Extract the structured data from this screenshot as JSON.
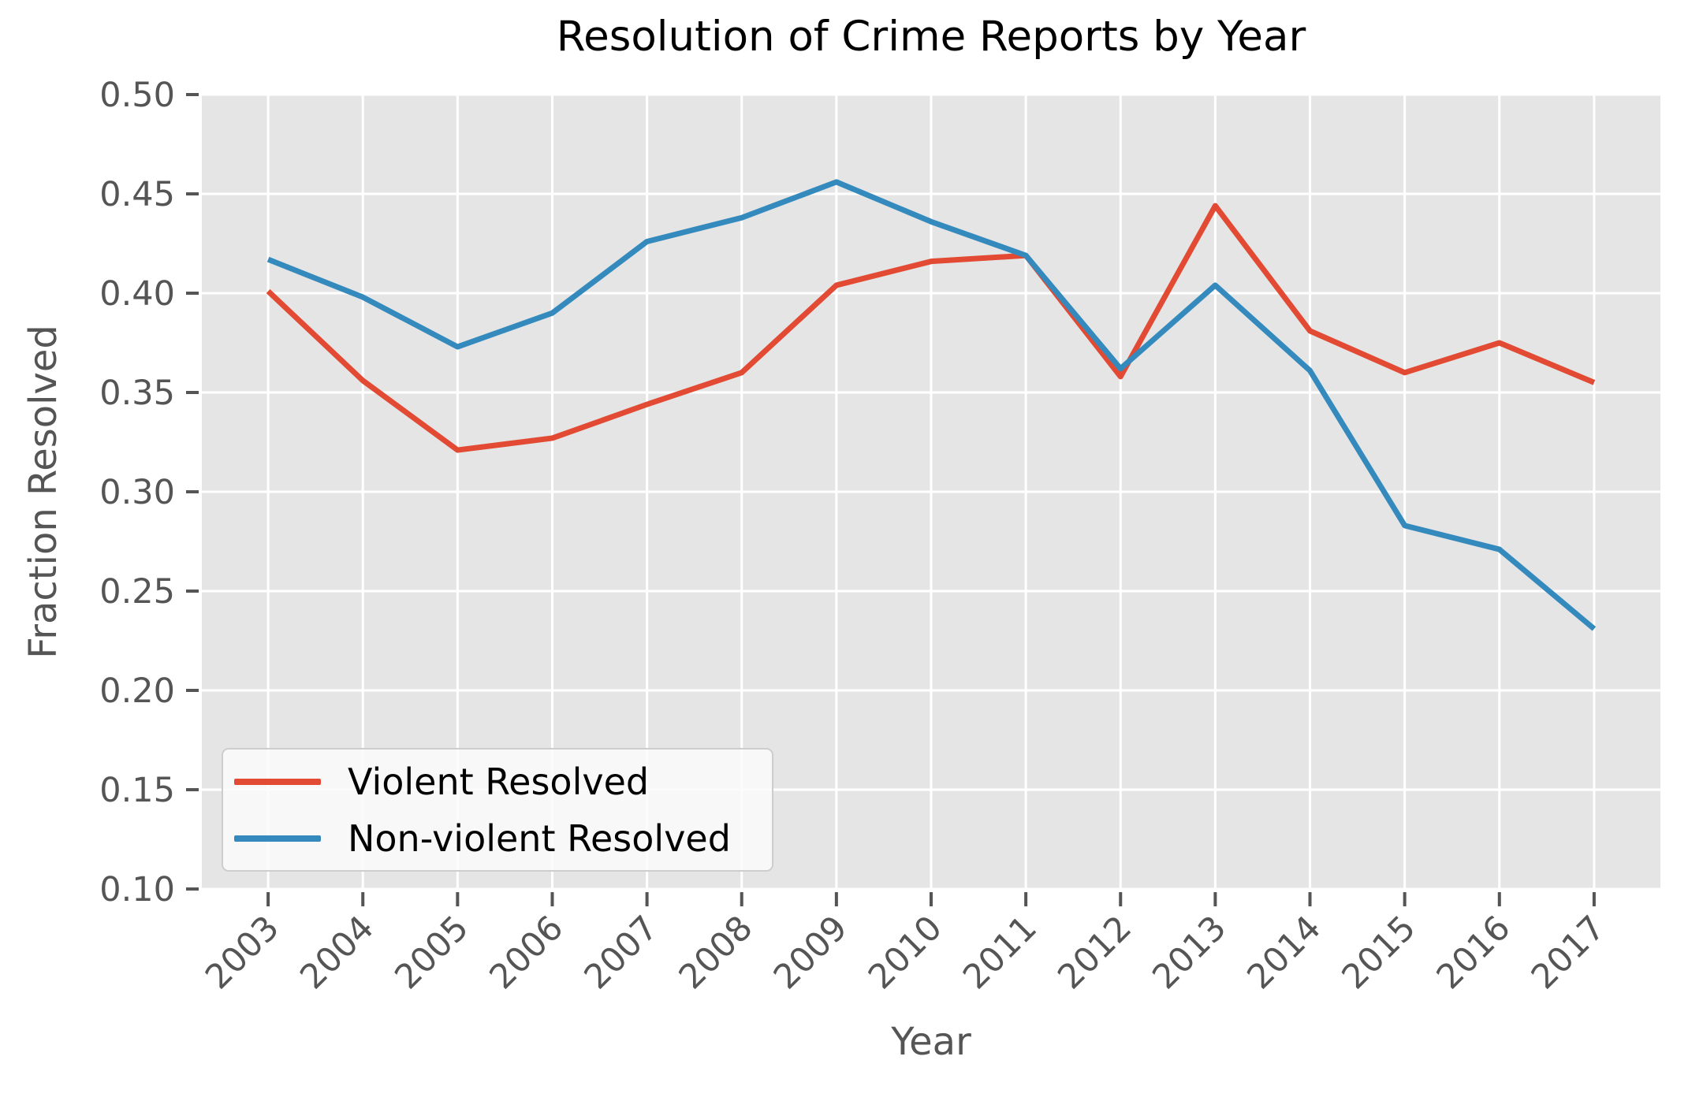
{
  "chart_data": {
    "type": "line",
    "title": "Resolution of Crime Reports by Year",
    "xlabel": "Year",
    "ylabel": "Fraction Resolved",
    "x": [
      2003,
      2004,
      2005,
      2006,
      2007,
      2008,
      2009,
      2010,
      2011,
      2012,
      2013,
      2014,
      2015,
      2016,
      2017
    ],
    "series": [
      {
        "name": "Violent Resolved",
        "color": "#E24A33",
        "values": [
          0.401,
          0.356,
          0.321,
          0.327,
          0.344,
          0.36,
          0.404,
          0.416,
          0.419,
          0.358,
          0.444,
          0.381,
          0.36,
          0.375,
          0.355
        ]
      },
      {
        "name": "Non-violent Resolved",
        "color": "#348ABD",
        "values": [
          0.417,
          0.398,
          0.373,
          0.39,
          0.426,
          0.438,
          0.456,
          0.436,
          0.419,
          0.362,
          0.404,
          0.361,
          0.283,
          0.271,
          0.231
        ]
      }
    ],
    "ylim": [
      0.1,
      0.5
    ],
    "yticks": [
      0.1,
      0.15,
      0.2,
      0.25,
      0.3,
      0.35,
      0.4,
      0.45,
      0.5
    ],
    "ytick_labels": [
      "0.10",
      "0.15",
      "0.20",
      "0.25",
      "0.30",
      "0.35",
      "0.40",
      "0.45",
      "0.50"
    ],
    "xtick_labels": [
      "2003",
      "2004",
      "2005",
      "2006",
      "2007",
      "2008",
      "2009",
      "2010",
      "2011",
      "2012",
      "2013",
      "2014",
      "2015",
      "2016",
      "2017"
    ],
    "x_margin": 0.7,
    "grid": true,
    "legend_position": "lower left",
    "styles": {
      "plot_background": "#E5E5E5",
      "grid_color": "#FFFFFF",
      "tick_color": "#555555",
      "label_color": "#555555",
      "title_color": "#000000"
    }
  }
}
